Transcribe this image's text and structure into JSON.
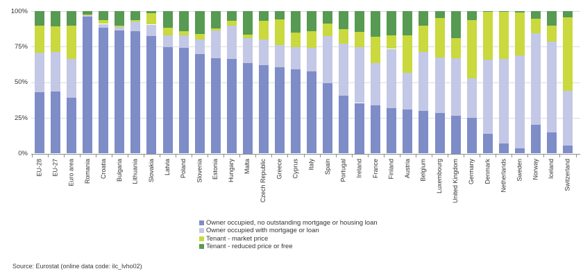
{
  "chart_data": {
    "type": "bar",
    "stacked": true,
    "orientation": "vertical",
    "grid": true,
    "legend_position": "bottom-center",
    "y_axis": {
      "min": 0,
      "max": 100,
      "tick_values": [
        0,
        25,
        50,
        75,
        100
      ],
      "tick_labels": [
        "0%",
        "25%",
        "50%",
        "75%",
        "100%"
      ]
    },
    "categories": [
      "EU-28",
      "EU-27",
      "Euro area",
      "Romania",
      "Croatia",
      "Bulgaria",
      "Lithuania",
      "Slovakia",
      "Latvia",
      "Poland",
      "Slovenia",
      "Estonia",
      "Hungary",
      "Malta",
      "Czech Republic",
      "Greece",
      "Cyprus",
      "Italy",
      "Spain",
      "Portugal",
      "Ireland",
      "France",
      "Finland",
      "Austria",
      "Belgium",
      "Luxembourg",
      "United Kingdom",
      "Germany",
      "Denmark",
      "Netherlands",
      "Sweden",
      "Norway",
      "Iceland",
      "Switzerland"
    ],
    "series": [
      {
        "name": "Owner occupied, no outstanding mortgage or housing loan",
        "color": "#7e8cc8",
        "values": [
          43,
          43.5,
          39,
          96.2,
          88.5,
          86.5,
          86,
          82.5,
          74.5,
          74,
          70,
          67,
          66.5,
          63.5,
          62,
          60.5,
          59,
          57.5,
          49.5,
          40.5,
          35.5,
          34,
          32,
          31,
          30,
          28.5,
          26.5,
          25,
          14,
          7,
          3.5,
          20,
          15,
          5.5
        ]
      },
      {
        "name": "Owner occupied with mortgage or loan",
        "color": "#c2c8e6",
        "values": [
          28,
          28,
          27.5,
          0.8,
          2.5,
          2.5,
          6.5,
          8,
          8.5,
          9,
          10,
          19.5,
          23.5,
          17.5,
          18,
          15.5,
          15.5,
          16.5,
          33,
          36.5,
          39,
          29.5,
          41.5,
          25.5,
          41.5,
          39,
          40.5,
          28,
          52,
          59.5,
          65.5,
          64.5,
          63.5,
          38.5
        ]
      },
      {
        "name": "Tenant - market price",
        "color": "#c9d93e",
        "values": [
          19,
          18,
          23.5,
          0.7,
          2.5,
          1,
          1,
          8,
          5.5,
          3,
          4,
          1.5,
          3,
          2.5,
          13,
          18,
          10.5,
          12,
          9,
          10.5,
          11,
          18.5,
          9.5,
          26.5,
          18.5,
          27.5,
          14,
          40.5,
          33.5,
          33,
          30,
          10,
          11.5,
          51.5
        ]
      },
      {
        "name": "Tenant - reduced price or free",
        "color": "#579a52",
        "values": [
          10,
          10.5,
          10,
          2.3,
          6.5,
          10,
          6.5,
          1.5,
          11.5,
          14,
          16,
          12,
          7,
          16.5,
          7,
          6,
          15,
          14,
          8.5,
          12.5,
          14.5,
          18,
          17,
          17,
          10,
          5,
          19,
          6.5,
          0.5,
          0.5,
          1,
          5.5,
          10,
          4.5
        ]
      }
    ]
  },
  "source_note": "Source: Eurostat (online data code: ilc_lvho02)"
}
